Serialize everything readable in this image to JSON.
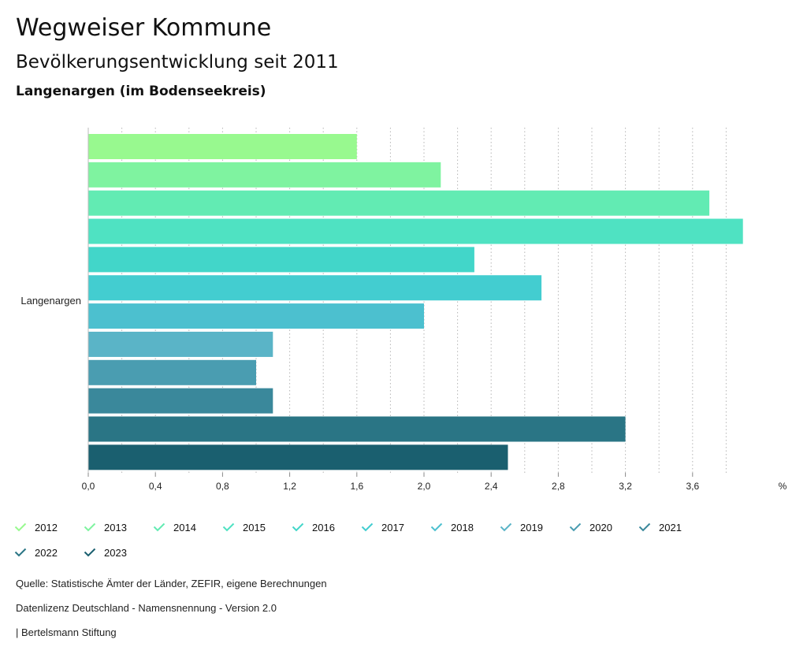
{
  "header": {
    "title": "Wegweiser Kommune",
    "subtitle": "Bevölkerungsentwicklung seit 2011",
    "region": "Langenargen (im Bodenseekreis)"
  },
  "chart_data": {
    "type": "bar",
    "orientation": "horizontal",
    "category": "Langenargen",
    "unit_label": "%",
    "xlim": [
      0,
      4.0
    ],
    "x_ticks": [
      "0,0",
      "0,4",
      "0,8",
      "1,2",
      "1,6",
      "2,0",
      "2,4",
      "2,8",
      "3,2",
      "3,6"
    ],
    "grid": true,
    "series": [
      {
        "name": "2012",
        "value": 1.6,
        "color": "#98f98f"
      },
      {
        "name": "2013",
        "value": 2.1,
        "color": "#7ff3a0"
      },
      {
        "name": "2014",
        "value": 3.7,
        "color": "#62ebb3"
      },
      {
        "name": "2015",
        "value": 3.9,
        "color": "#4fe2c2"
      },
      {
        "name": "2016",
        "value": 2.3,
        "color": "#42d6c9"
      },
      {
        "name": "2017",
        "value": 2.7,
        "color": "#43cdd0"
      },
      {
        "name": "2018",
        "value": 2.0,
        "color": "#4cc0cf"
      },
      {
        "name": "2019",
        "value": 1.1,
        "color": "#5ab4c7"
      },
      {
        "name": "2020",
        "value": 1.0,
        "color": "#4a9db1"
      },
      {
        "name": "2021",
        "value": 1.1,
        "color": "#3a889b"
      },
      {
        "name": "2022",
        "value": 3.2,
        "color": "#2a7585"
      },
      {
        "name": "2023",
        "value": 2.5,
        "color": "#1a5f6f"
      }
    ]
  },
  "footer": {
    "source": "Quelle: Statistische Ämter der Länder, ZEFIR, eigene Berechnungen",
    "license": "Datenlizenz Deutschland - Namensnennung - Version 2.0",
    "publisher": "| Bertelsmann Stiftung"
  }
}
